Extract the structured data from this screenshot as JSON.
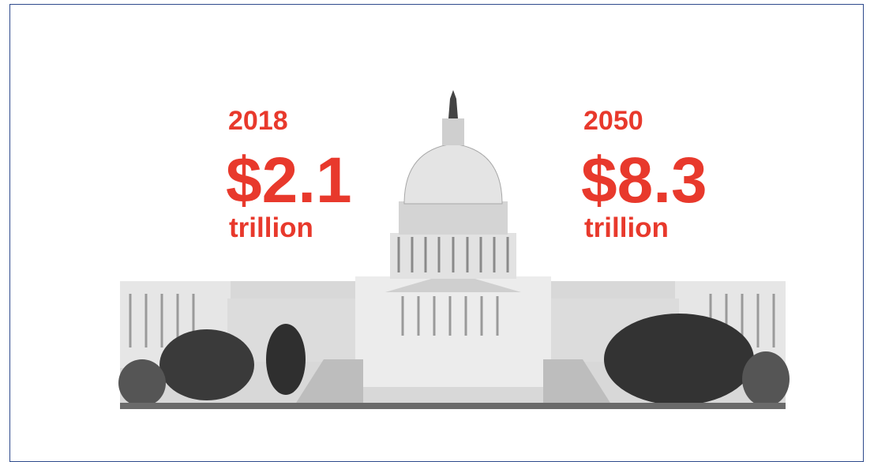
{
  "figures": [
    {
      "year": "2018",
      "amount": "$2.1",
      "unit": "trillion"
    },
    {
      "year": "2050",
      "amount": "$8.3",
      "unit": "trillion"
    }
  ]
}
